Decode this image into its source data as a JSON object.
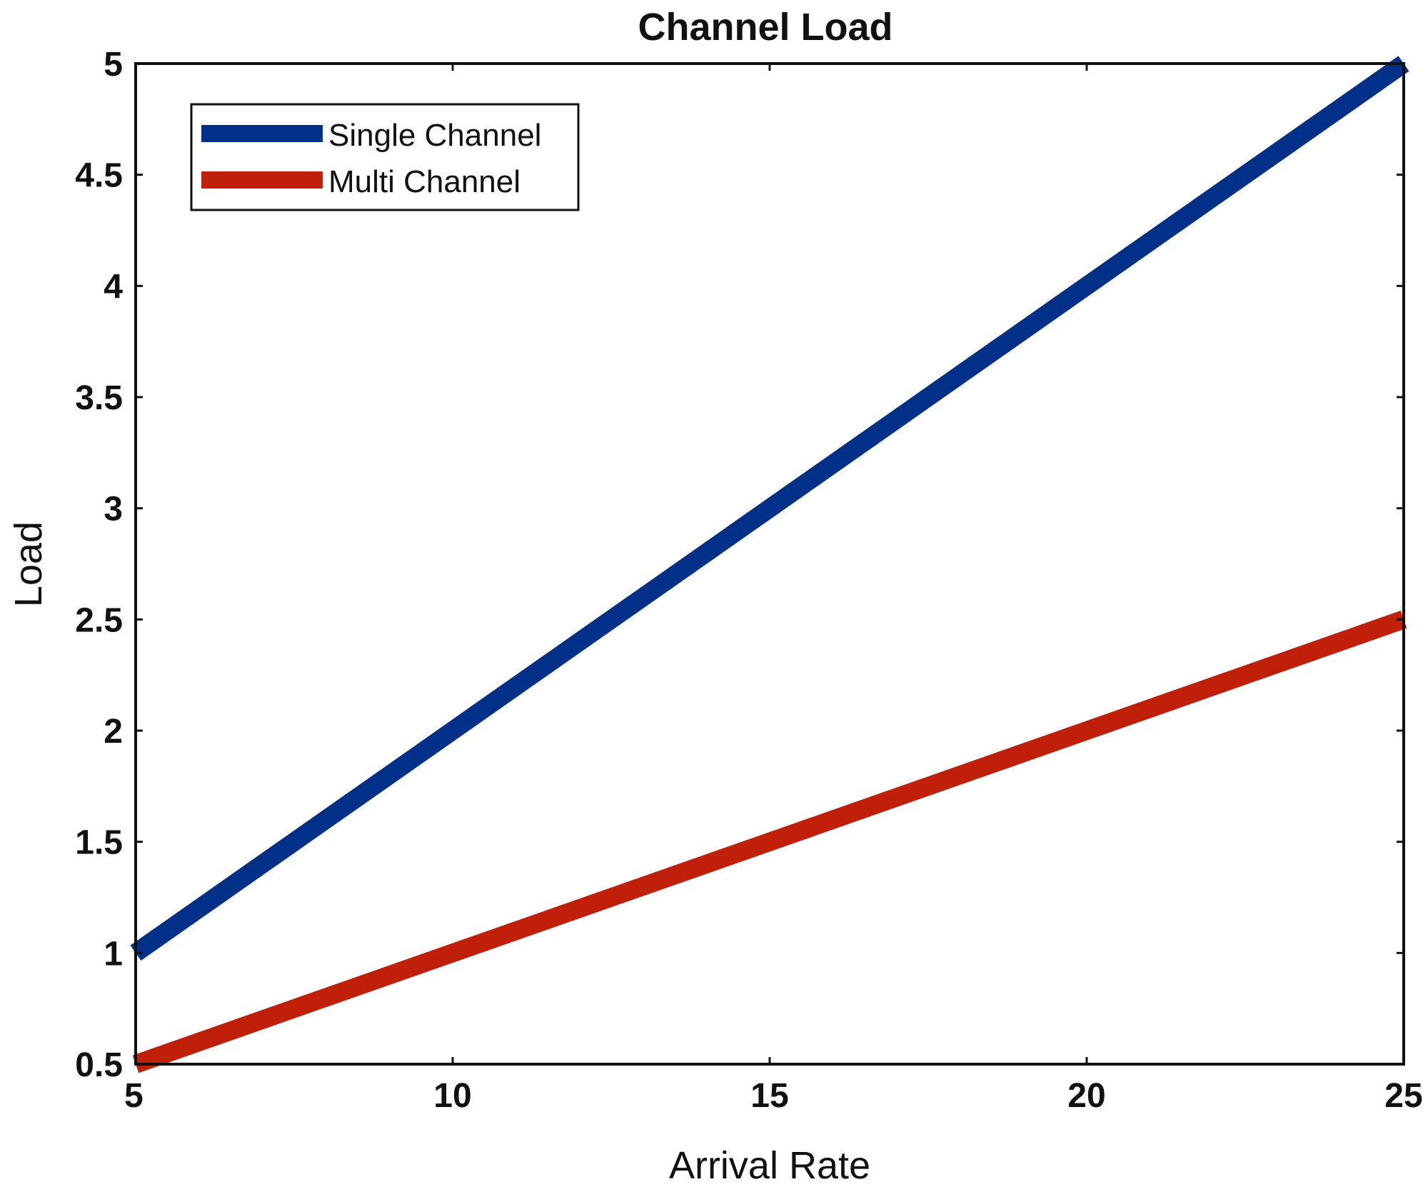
{
  "chart_data": {
    "type": "line",
    "title": "Channel Load",
    "xlabel": "Arrival Rate",
    "ylabel": "Load",
    "xlim": [
      5,
      25
    ],
    "ylim": [
      0.5,
      5
    ],
    "xticks": [
      5,
      10,
      15,
      20,
      25
    ],
    "xtick_labels": [
      "5",
      "10",
      "15",
      "20",
      "25"
    ],
    "yticks": [
      0.5,
      1,
      1.5,
      2,
      2.5,
      3,
      3.5,
      4,
      4.5,
      5
    ],
    "ytick_labels": [
      "0.5",
      "1",
      "1.5",
      "2",
      "2.5",
      "3",
      "3.5",
      "4",
      "4.5",
      "5"
    ],
    "grid": false,
    "legend_position": "top-left",
    "x": [
      5,
      10,
      15,
      20,
      25
    ],
    "series": [
      {
        "name": "Single Channel",
        "color": "#003087",
        "values": [
          1,
          2,
          3,
          4,
          5
        ]
      },
      {
        "name": "Multi Channel",
        "color": "#c01f0a",
        "values": [
          0.5,
          1,
          1.5,
          2,
          2.5
        ]
      }
    ]
  }
}
